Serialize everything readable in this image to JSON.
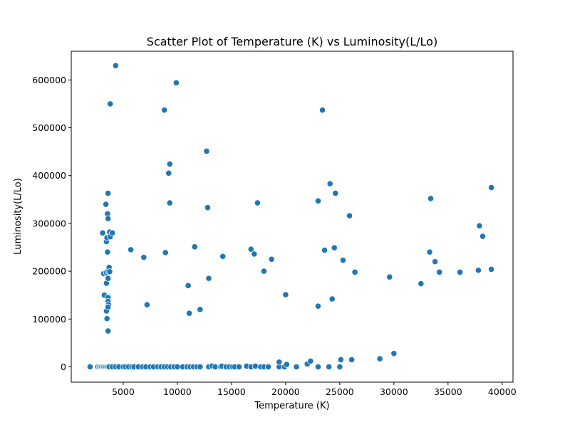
{
  "chart_data": {
    "type": "scatter",
    "title": "Scatter Plot of Temperature (K) vs Luminosity(L/Lo)",
    "xlabel": "Temperature (K)",
    "ylabel": "Luminosity(L/Lo)",
    "xlim": [
      200,
      41000
    ],
    "ylim": [
      -32000,
      660000
    ],
    "xticks": [
      5000,
      10000,
      15000,
      20000,
      25000,
      30000,
      35000,
      40000
    ],
    "xtick_labels": [
      "5000",
      "10000",
      "15000",
      "20000",
      "25000",
      "30000",
      "35000",
      "40000"
    ],
    "yticks": [
      0,
      100000,
      200000,
      300000,
      400000,
      500000,
      600000
    ],
    "ytick_labels": [
      "0",
      "100000",
      "200000",
      "300000",
      "400000",
      "500000",
      "600000"
    ],
    "grid": false,
    "marker_color": "#1f77b4",
    "marker_edge_color": "#ffffff",
    "points": [
      [
        1939,
        0
      ],
      [
        2650,
        0
      ],
      [
        2800,
        0
      ],
      [
        2900,
        0
      ],
      [
        3000,
        0
      ],
      [
        3100,
        0
      ],
      [
        3200,
        0
      ],
      [
        3300,
        0
      ],
      [
        3400,
        0
      ],
      [
        3500,
        0
      ],
      [
        3600,
        0
      ],
      [
        3700,
        0
      ],
      [
        4000,
        0
      ],
      [
        4300,
        0
      ],
      [
        4600,
        0
      ],
      [
        5000,
        0
      ],
      [
        5200,
        0
      ],
      [
        5500,
        0
      ],
      [
        5800,
        0
      ],
      [
        6000,
        0
      ],
      [
        6400,
        0
      ],
      [
        6800,
        0
      ],
      [
        7100,
        0
      ],
      [
        7500,
        0
      ],
      [
        7800,
        0
      ],
      [
        8200,
        0
      ],
      [
        8500,
        0
      ],
      [
        8800,
        0
      ],
      [
        9100,
        0
      ],
      [
        9400,
        0
      ],
      [
        9700,
        0
      ],
      [
        10000,
        0
      ],
      [
        10500,
        0
      ],
      [
        10900,
        0
      ],
      [
        11200,
        0
      ],
      [
        11500,
        0
      ],
      [
        11800,
        0
      ],
      [
        12100,
        0
      ],
      [
        12900,
        0
      ],
      [
        13200,
        1800
      ],
      [
        13500,
        0
      ],
      [
        14000,
        0
      ],
      [
        14100,
        1500
      ],
      [
        14500,
        0
      ],
      [
        14800,
        0
      ],
      [
        15100,
        0
      ],
      [
        15300,
        0
      ],
      [
        15700,
        0
      ],
      [
        16400,
        1500
      ],
      [
        16800,
        0
      ],
      [
        17200,
        1500
      ],
      [
        17700,
        0
      ],
      [
        18000,
        0
      ],
      [
        18400,
        0
      ],
      [
        19400,
        0
      ],
      [
        19400,
        10000
      ],
      [
        19900,
        0
      ],
      [
        20100,
        5000
      ],
      [
        21000,
        0
      ],
      [
        22000,
        6000
      ],
      [
        22300,
        12000
      ],
      [
        23000,
        0
      ],
      [
        24000,
        0
      ],
      [
        25000,
        0
      ],
      [
        25100,
        15000
      ],
      [
        26100,
        15000
      ],
      [
        28700,
        17000
      ],
      [
        30000,
        28000
      ],
      [
        3100,
        280000
      ],
      [
        3200,
        195000
      ],
      [
        3250,
        150000
      ],
      [
        3400,
        340000
      ],
      [
        3450,
        262000
      ],
      [
        3450,
        197000
      ],
      [
        3450,
        175000
      ],
      [
        3450,
        117000
      ],
      [
        3500,
        101000
      ],
      [
        3500,
        270000
      ],
      [
        3550,
        320000
      ],
      [
        3550,
        240000
      ],
      [
        3600,
        363000
      ],
      [
        3600,
        310000
      ],
      [
        3600,
        200000
      ],
      [
        3600,
        185000
      ],
      [
        3600,
        145000
      ],
      [
        3600,
        137000
      ],
      [
        3650,
        130000
      ],
      [
        3600,
        125000
      ],
      [
        3600,
        75000
      ],
      [
        3700,
        208000
      ],
      [
        3750,
        199000
      ],
      [
        3800,
        550000
      ],
      [
        3750,
        282000
      ],
      [
        3800,
        272000
      ],
      [
        4000,
        280000
      ],
      [
        4300,
        630000
      ],
      [
        5700,
        245000
      ],
      [
        6900,
        229000
      ],
      [
        7200,
        130000
      ],
      [
        8800,
        537000
      ],
      [
        8900,
        239000
      ],
      [
        9200,
        405000
      ],
      [
        9300,
        424000
      ],
      [
        9300,
        343000
      ],
      [
        9900,
        594000
      ],
      [
        11000,
        170000
      ],
      [
        11100,
        112000
      ],
      [
        11600,
        251000
      ],
      [
        12100,
        120000
      ],
      [
        12700,
        451000
      ],
      [
        12800,
        333000
      ],
      [
        12900,
        185000
      ],
      [
        14200,
        231000
      ],
      [
        16800,
        246000
      ],
      [
        17100,
        236000
      ],
      [
        17400,
        343000
      ],
      [
        18000,
        200000
      ],
      [
        18700,
        225000
      ],
      [
        20000,
        151000
      ],
      [
        23000,
        347000
      ],
      [
        23000,
        127000
      ],
      [
        23400,
        537000
      ],
      [
        23600,
        244000
      ],
      [
        24100,
        383000
      ],
      [
        24300,
        142000
      ],
      [
        24500,
        249000
      ],
      [
        24600,
        363000
      ],
      [
        25300,
        223000
      ],
      [
        25900,
        316000
      ],
      [
        26400,
        198000
      ],
      [
        29600,
        188000
      ],
      [
        32500,
        174000
      ],
      [
        33300,
        240000
      ],
      [
        33400,
        352000
      ],
      [
        33800,
        220000
      ],
      [
        34200,
        198000
      ],
      [
        36100,
        198000
      ],
      [
        37800,
        202000
      ],
      [
        37900,
        295000
      ],
      [
        38200,
        273000
      ],
      [
        39000,
        204000
      ],
      [
        39000,
        375000
      ]
    ]
  }
}
